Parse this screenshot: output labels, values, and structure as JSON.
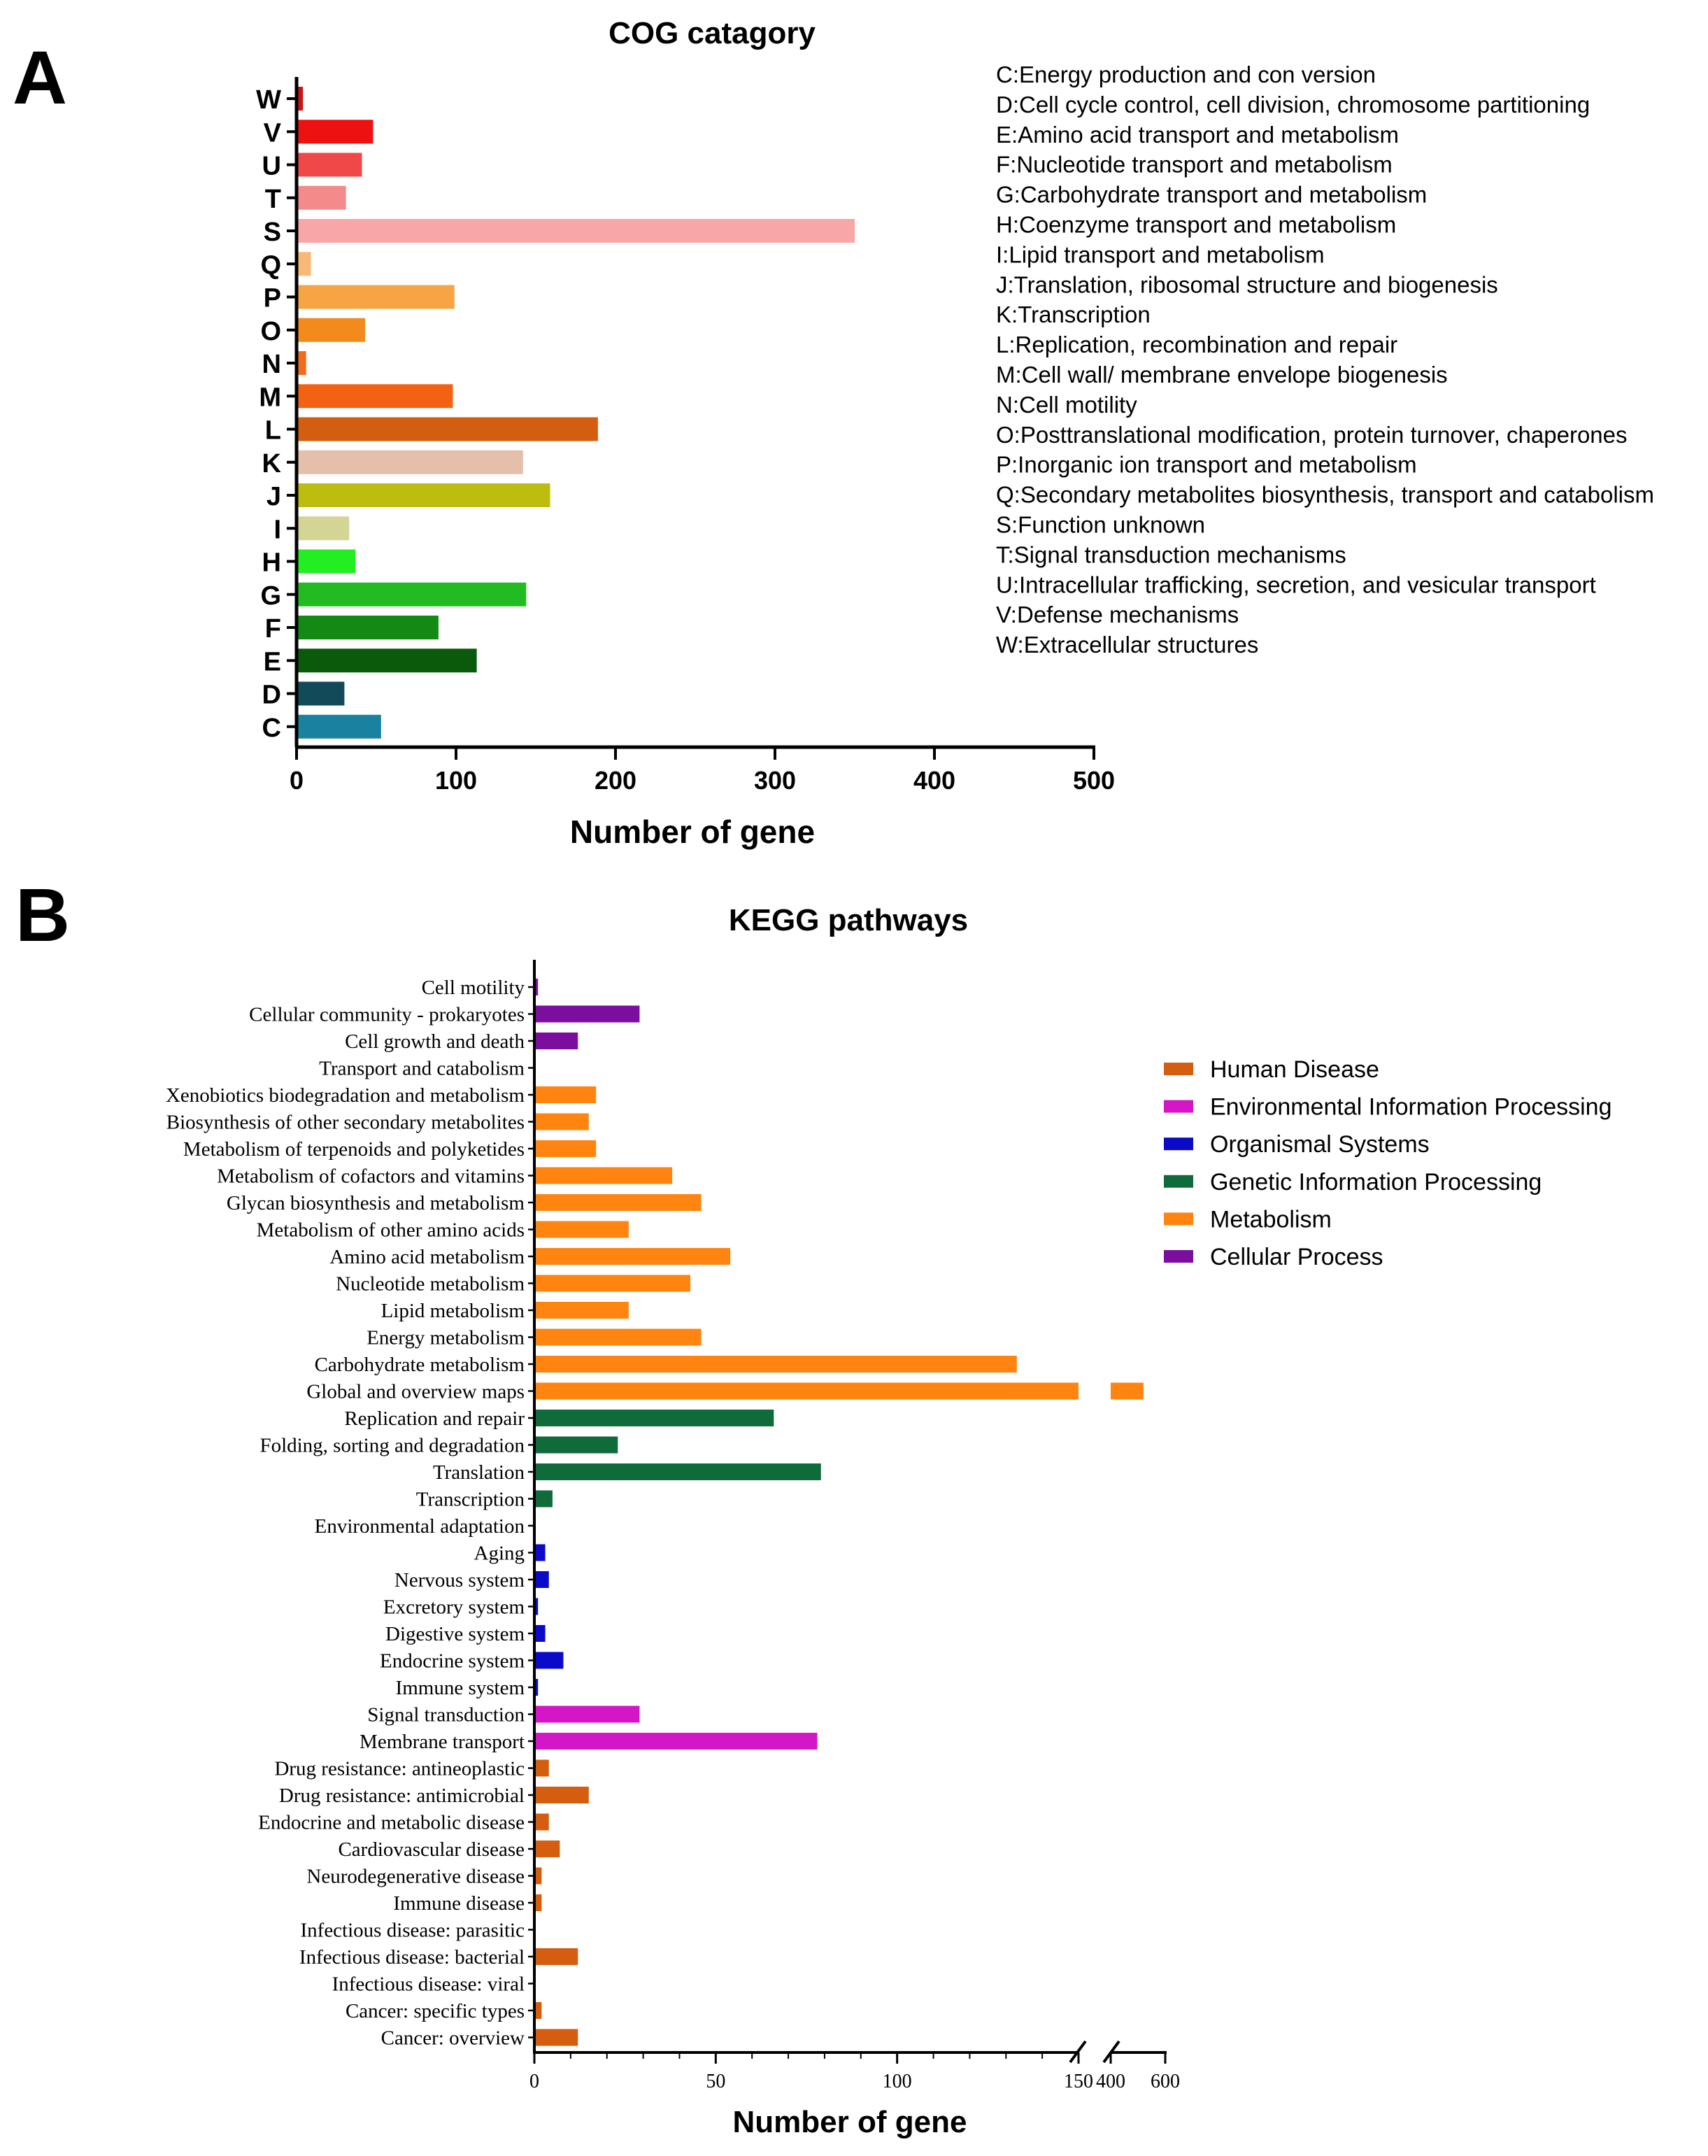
{
  "chart_data": [
    {
      "panel_label": "A",
      "type": "bar",
      "orientation": "horizontal",
      "title": "COG catagory",
      "xlabel": "Number of gene",
      "ylabel": "",
      "xlim": [
        0,
        500
      ],
      "xticks": [
        0,
        100,
        200,
        300,
        400,
        500
      ],
      "categories": [
        "W",
        "V",
        "U",
        "T",
        "S",
        "Q",
        "P",
        "O",
        "N",
        "M",
        "L",
        "K",
        "J",
        "I",
        "H",
        "G",
        "F",
        "E",
        "D",
        "C"
      ],
      "values": [
        4,
        48,
        41,
        31,
        350,
        9,
        99,
        43,
        6,
        98,
        189,
        142,
        159,
        33,
        37,
        144,
        89,
        113,
        30,
        53
      ],
      "colors": [
        "#cc1414",
        "#ee1111",
        "#f04848",
        "#f58a8a",
        "#f8a6a6",
        "#f8b878",
        "#f6a444",
        "#f28a1c",
        "#f26c1c",
        "#f26212",
        "#d45e10",
        "#e4bfaa",
        "#bdbd10",
        "#d4d494",
        "#22ee22",
        "#22bb22",
        "#138a13",
        "#0b5a0b",
        "#124a5a",
        "#1a82a0"
      ],
      "legend_entries": [
        "C:Energy production and con version",
        "D:Cell cycle control, cell division, chromosome partitioning",
        "E:Amino acid transport and metabolism",
        "F:Nucleotide transport and metabolism",
        "G:Carbohydrate transport and metabolism",
        "H:Coenzyme transport and metabolism",
        "I:Lipid transport and metabolism",
        "J:Translation, ribosomal structure and biogenesis",
        "K:Transcription",
        "L:Replication, recombination and repair",
        "M:Cell wall/ membrane envelope biogenesis",
        "N:Cell motility",
        "O:Posttranslational modification, protein turnover, chaperones",
        "P:Inorganic ion transport and metabolism",
        "Q:Secondary metabolites biosynthesis, transport and catabolism",
        "S:Function unknown",
        "T:Signal transduction mechanisms",
        "U:Intracellular trafficking, secretion, and vesicular transport",
        "V:Defense mechanisms",
        "W:Extracellular structures"
      ]
    },
    {
      "panel_label": "B",
      "type": "bar",
      "orientation": "horizontal",
      "title": "KEGG pathways",
      "xlabel": "Number of gene",
      "ylabel": "",
      "axis_break": true,
      "xlim_segment1": [
        0,
        150
      ],
      "xlim_segment2": [
        400,
        600
      ],
      "xticks_segment1": [
        0,
        50,
        100,
        150
      ],
      "xticks_segment2": [
        400,
        600
      ],
      "legend_entries": [
        {
          "name": "Human Disease",
          "color": "#d45d10"
        },
        {
          "name": "Environmental Information Processing",
          "color": "#d515c8"
        },
        {
          "name": "Organismal Systems",
          "color": "#0a0ac8"
        },
        {
          "name": "Genetic Information Processing",
          "color": "#0f6b3a"
        },
        {
          "name": "Metabolism",
          "color": "#ff8510"
        },
        {
          "name": "Cellular Process",
          "color": "#7b0e9e"
        }
      ],
      "categories": [
        "Cell motility",
        "Cellular community - prokaryotes",
        "Cell growth and death",
        "Transport and catabolism",
        "Xenobiotics biodegradation and metabolism",
        "Biosynthesis of other secondary metabolites",
        "Metabolism of terpenoids and polyketides",
        "Metabolism of cofactors and vitamins",
        "Glycan biosynthesis and metabolism",
        "Metabolism of other amino acids",
        "Amino acid metabolism",
        "Nucleotide metabolism",
        "Lipid metabolism",
        "Energy metabolism",
        "Carbohydrate metabolism",
        "Global and overview maps",
        "Replication and repair",
        "Folding, sorting and degradation",
        "Translation",
        "Transcription",
        "Environmental adaptation",
        "Aging",
        "Nervous system",
        "Excretory system",
        "Digestive system",
        "Endocrine system",
        "Immune system",
        "Signal transduction",
        "Membrane transport",
        "Drug resistance: antineoplastic",
        "Drug resistance: antimicrobial",
        "Endocrine and metabolic disease",
        "Cardiovascular disease",
        "Neurodegenerative disease",
        "Immune disease",
        "Infectious disease: parasitic",
        "Infectious disease: bacterial",
        "Infectious disease: viral",
        "Cancer: specific types",
        "Cancer: overview"
      ],
      "values": [
        1,
        29,
        12,
        0,
        17,
        15,
        17,
        38,
        46,
        26,
        54,
        43,
        26,
        46,
        133,
        520,
        66,
        23,
        79,
        5,
        0,
        3,
        4,
        1,
        3,
        8,
        1,
        29,
        78,
        4,
        15,
        4,
        7,
        2,
        2,
        0,
        12,
        0,
        2,
        12
      ],
      "groups": [
        "Cellular Process",
        "Cellular Process",
        "Cellular Process",
        "Cellular Process",
        "Metabolism",
        "Metabolism",
        "Metabolism",
        "Metabolism",
        "Metabolism",
        "Metabolism",
        "Metabolism",
        "Metabolism",
        "Metabolism",
        "Metabolism",
        "Metabolism",
        "Metabolism",
        "Genetic Information Processing",
        "Genetic Information Processing",
        "Genetic Information Processing",
        "Genetic Information Processing",
        "Organismal Systems",
        "Organismal Systems",
        "Organismal Systems",
        "Organismal Systems",
        "Organismal Systems",
        "Organismal Systems",
        "Organismal Systems",
        "Environmental Information Processing",
        "Environmental Information Processing",
        "Human Disease",
        "Human Disease",
        "Human Disease",
        "Human Disease",
        "Human Disease",
        "Human Disease",
        "Human Disease",
        "Human Disease",
        "Human Disease",
        "Human Disease",
        "Human Disease"
      ]
    }
  ]
}
